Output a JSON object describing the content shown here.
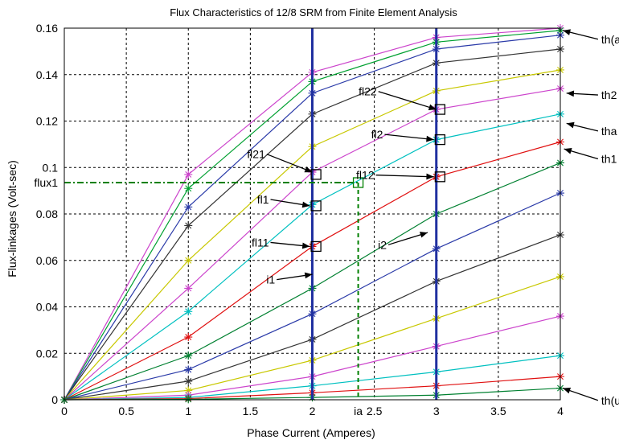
{
  "chart_data": {
    "type": "line",
    "title": "Flux Characteristics of 12/8 SRM from Finite Element Analysis",
    "xlabel": "Phase Current (Amperes)",
    "ylabel": "Flux-linkages (Volt-sec)",
    "xlim": [
      0,
      4
    ],
    "ylim": [
      0,
      0.16
    ],
    "xticks": [
      0,
      0.5,
      1,
      1.5,
      2,
      2.5,
      3,
      3.5,
      4
    ],
    "xtick_labels": [
      "0",
      "0.5",
      "1",
      "1.5",
      "2",
      "2.5",
      "3",
      "3.5",
      "4"
    ],
    "yticks": [
      0,
      0.02,
      0.04,
      0.06,
      0.08,
      0.1,
      0.12,
      0.14,
      0.16
    ],
    "ytick_labels": [
      "0",
      "0.02",
      "0.04",
      "0.06",
      "0.08",
      "0.1",
      "0.12",
      "0.14",
      "0.16"
    ],
    "grid": true,
    "x": [
      0,
      1,
      2,
      3,
      4
    ],
    "series": [
      {
        "color": "#cc44cc",
        "values": [
          0,
          0.097,
          0.141,
          0.156,
          0.16
        ]
      },
      {
        "color": "#00a030",
        "values": [
          0,
          0.091,
          0.137,
          0.154,
          0.159
        ]
      },
      {
        "color": "#2a3aa8",
        "values": [
          0,
          0.083,
          0.132,
          0.151,
          0.157
        ]
      },
      {
        "color": "#333333",
        "values": [
          0,
          0.075,
          0.123,
          0.145,
          0.151
        ]
      },
      {
        "color": "#c8c800",
        "values": [
          0,
          0.06,
          0.109,
          0.133,
          0.142
        ]
      },
      {
        "color": "#cc44cc",
        "values": [
          0,
          0.048,
          0.098,
          0.125,
          0.134
        ]
      },
      {
        "color": "#00c0c0",
        "values": [
          0,
          0.038,
          0.084,
          0.112,
          0.123
        ]
      },
      {
        "color": "#e01010",
        "values": [
          0,
          0.027,
          0.066,
          0.096,
          0.111
        ]
      },
      {
        "color": "#008030",
        "values": [
          0,
          0.019,
          0.048,
          0.08,
          0.102
        ]
      },
      {
        "color": "#2a3aa8",
        "values": [
          0,
          0.013,
          0.037,
          0.065,
          0.089
        ]
      },
      {
        "color": "#333333",
        "values": [
          0,
          0.008,
          0.026,
          0.051,
          0.071
        ]
      },
      {
        "color": "#c8c800",
        "values": [
          0,
          0.004,
          0.017,
          0.035,
          0.053
        ]
      },
      {
        "color": "#cc44cc",
        "values": [
          0,
          0.002,
          0.01,
          0.023,
          0.036
        ]
      },
      {
        "color": "#00c0c0",
        "values": [
          0,
          0.001,
          0.006,
          0.012,
          0.019
        ]
      },
      {
        "color": "#e01010",
        "values": [
          0,
          0.0005,
          0.003,
          0.006,
          0.01
        ]
      },
      {
        "color": "#008030",
        "values": [
          0,
          0.0002,
          0.001,
          0.002,
          0.005
        ]
      }
    ],
    "vertical_lines": [
      {
        "x": 2,
        "color": "#2030a0"
      },
      {
        "x": 3,
        "color": "#2030a0"
      }
    ],
    "dashed_guides": {
      "x": 2.37,
      "y": 0.0935,
      "color": "#008000",
      "x_label": "ia",
      "y_label": "flux1"
    },
    "markers": [
      {
        "label": "fl21",
        "x": 2.03,
        "y": 0.097
      },
      {
        "label": "fl1",
        "x": 2.03,
        "y": 0.0835
      },
      {
        "label": "fl11",
        "x": 2.03,
        "y": 0.066
      },
      {
        "label": "fl22",
        "x": 3.03,
        "y": 0.125
      },
      {
        "label": "fl2",
        "x": 3.03,
        "y": 0.112
      },
      {
        "label": "fl12",
        "x": 3.03,
        "y": 0.096
      },
      {
        "label": "",
        "x": 2.37,
        "y": 0.0935
      }
    ],
    "annotations": [
      {
        "text": "fl21",
        "x": 1.62,
        "y": 0.104,
        "ax": 2.0,
        "ay": 0.098
      },
      {
        "text": "fl1",
        "x": 1.65,
        "y": 0.0845,
        "ax": 1.98,
        "ay": 0.0835
      },
      {
        "text": "fl11",
        "x": 1.65,
        "y": 0.066,
        "ax": 1.98,
        "ay": 0.066
      },
      {
        "text": "fl22",
        "x": 2.52,
        "y": 0.131,
        "ax": 3.0,
        "ay": 0.125
      },
      {
        "text": "fl2",
        "x": 2.57,
        "y": 0.1125,
        "ax": 2.98,
        "ay": 0.112
      },
      {
        "text": "fl12",
        "x": 2.5,
        "y": 0.095,
        "ax": 2.98,
        "ay": 0.096
      },
      {
        "text": "i1",
        "x": 1.7,
        "y": 0.05,
        "ax": 2.0,
        "ay": 0.054
      },
      {
        "text": "i2",
        "x": 2.6,
        "y": 0.065,
        "ax": 2.93,
        "ay": 0.072
      },
      {
        "text": "th(a)",
        "x": 4.33,
        "y": 0.1535,
        "ax": 4.02,
        "ay": 0.159
      },
      {
        "text": "th2",
        "x": 4.33,
        "y": 0.1295,
        "ax": 4.05,
        "ay": 0.132
      },
      {
        "text": "tha",
        "x": 4.33,
        "y": 0.114,
        "ax": 4.05,
        "ay": 0.119
      },
      {
        "text": "th1",
        "x": 4.33,
        "y": 0.102,
        "ax": 4.03,
        "ay": 0.108
      },
      {
        "text": "th(u)",
        "x": 4.33,
        "y": -0.002,
        "ax": 4.02,
        "ay": 0.005
      }
    ]
  }
}
